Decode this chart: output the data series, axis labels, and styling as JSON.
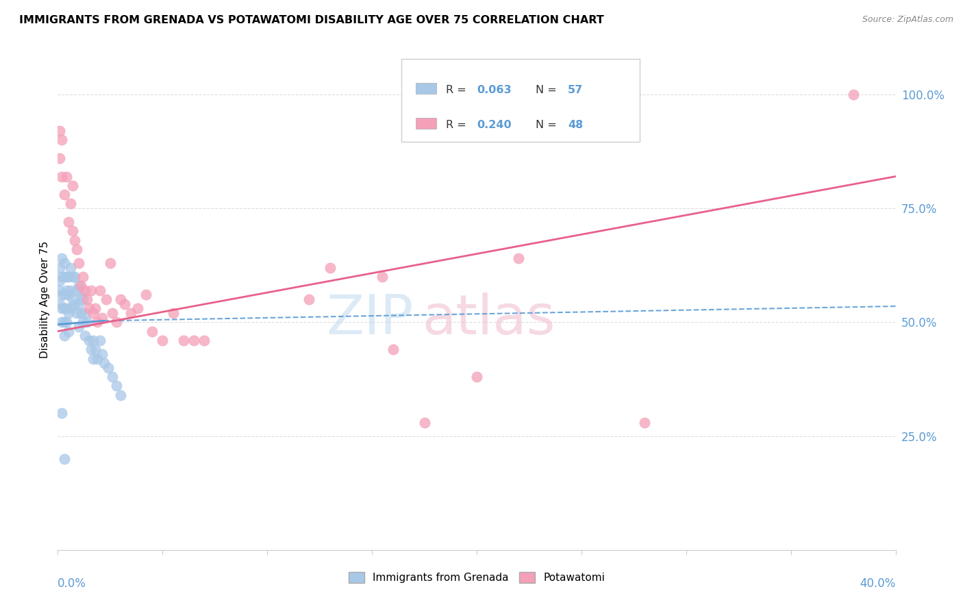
{
  "title": "IMMIGRANTS FROM GRENADA VS POTAWATOMI DISABILITY AGE OVER 75 CORRELATION CHART",
  "source": "Source: ZipAtlas.com",
  "ylabel": "Disability Age Over 75",
  "ylabel_ticks": [
    "25.0%",
    "50.0%",
    "75.0%",
    "100.0%"
  ],
  "ylabel_tick_vals": [
    0.25,
    0.5,
    0.75,
    1.0
  ],
  "xmin": 0.0,
  "xmax": 0.4,
  "ymin": 0.0,
  "ymax": 1.1,
  "color_blue": "#a8c8e8",
  "color_pink": "#f4a0b8",
  "trendline_blue_color": "#5b9bd5",
  "trendline_pink_color": "#e8608a",
  "blue_x": [
    0.001,
    0.001,
    0.001,
    0.001,
    0.002,
    0.002,
    0.002,
    0.002,
    0.002,
    0.003,
    0.003,
    0.003,
    0.003,
    0.003,
    0.003,
    0.004,
    0.004,
    0.004,
    0.004,
    0.005,
    0.005,
    0.005,
    0.005,
    0.006,
    0.006,
    0.006,
    0.007,
    0.007,
    0.008,
    0.008,
    0.009,
    0.009,
    0.01,
    0.01,
    0.01,
    0.011,
    0.011,
    0.012,
    0.012,
    0.013,
    0.013,
    0.014,
    0.015,
    0.016,
    0.017,
    0.017,
    0.018,
    0.019,
    0.02,
    0.021,
    0.022,
    0.024,
    0.026,
    0.028,
    0.03,
    0.002,
    0.003
  ],
  "blue_y": [
    0.62,
    0.59,
    0.57,
    0.54,
    0.64,
    0.6,
    0.56,
    0.53,
    0.5,
    0.63,
    0.6,
    0.56,
    0.53,
    0.5,
    0.47,
    0.6,
    0.57,
    0.53,
    0.5,
    0.6,
    0.56,
    0.52,
    0.48,
    0.62,
    0.57,
    0.53,
    0.6,
    0.55,
    0.6,
    0.54,
    0.57,
    0.52,
    0.58,
    0.54,
    0.49,
    0.56,
    0.52,
    0.55,
    0.5,
    0.52,
    0.47,
    0.5,
    0.46,
    0.44,
    0.46,
    0.42,
    0.44,
    0.42,
    0.46,
    0.43,
    0.41,
    0.4,
    0.38,
    0.36,
    0.34,
    0.3,
    0.2
  ],
  "pink_x": [
    0.001,
    0.001,
    0.002,
    0.002,
    0.003,
    0.004,
    0.005,
    0.006,
    0.007,
    0.007,
    0.008,
    0.009,
    0.01,
    0.011,
    0.012,
    0.013,
    0.014,
    0.015,
    0.016,
    0.017,
    0.018,
    0.019,
    0.02,
    0.021,
    0.023,
    0.025,
    0.026,
    0.028,
    0.03,
    0.032,
    0.035,
    0.038,
    0.042,
    0.045,
    0.05,
    0.055,
    0.06,
    0.065,
    0.07,
    0.12,
    0.13,
    0.155,
    0.16,
    0.175,
    0.2,
    0.22,
    0.28,
    0.38
  ],
  "pink_y": [
    0.92,
    0.86,
    0.82,
    0.9,
    0.78,
    0.82,
    0.72,
    0.76,
    0.8,
    0.7,
    0.68,
    0.66,
    0.63,
    0.58,
    0.6,
    0.57,
    0.55,
    0.53,
    0.57,
    0.52,
    0.53,
    0.5,
    0.57,
    0.51,
    0.55,
    0.63,
    0.52,
    0.5,
    0.55,
    0.54,
    0.52,
    0.53,
    0.56,
    0.48,
    0.46,
    0.52,
    0.46,
    0.46,
    0.46,
    0.55,
    0.62,
    0.6,
    0.44,
    0.28,
    0.38,
    0.64,
    0.28,
    1.0
  ],
  "blue_trend_x": [
    0.0,
    0.08
  ],
  "blue_trend_y": [
    0.495,
    0.535
  ],
  "pink_trend_x": [
    0.0,
    0.4
  ],
  "pink_trend_y": [
    0.48,
    0.82
  ]
}
